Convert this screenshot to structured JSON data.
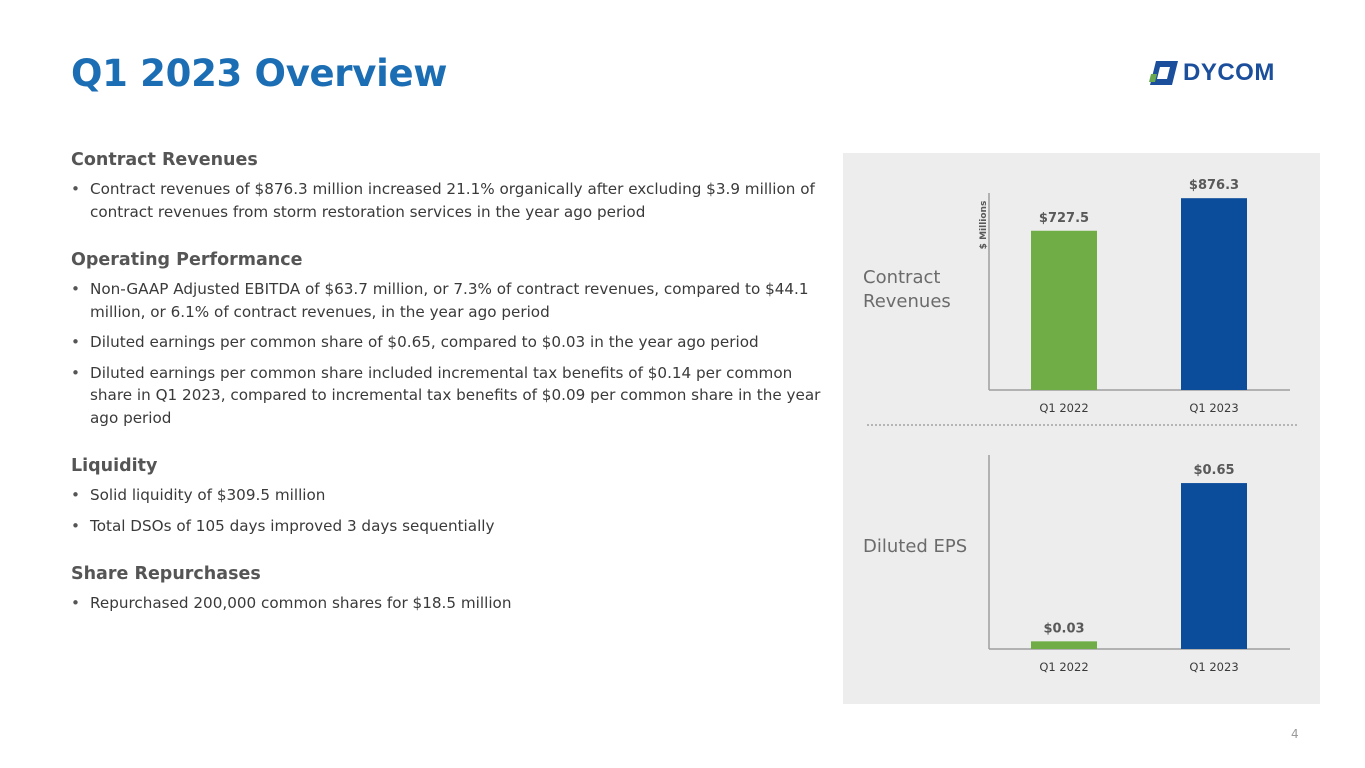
{
  "page": {
    "title": "Q1 2023 Overview",
    "page_number": "4"
  },
  "logo": {
    "text": "DYCOM",
    "colors": {
      "blue": "#1b4f9c",
      "green": "#6aa84f"
    }
  },
  "sections": [
    {
      "heading": "Contract Revenues",
      "bullets": [
        "Contract revenues of $876.3 million increased 21.1% organically after excluding $3.9 million of contract revenues from storm restoration services in the year ago period"
      ]
    },
    {
      "heading": "Operating Performance",
      "bullets": [
        "Non-GAAP Adjusted EBITDA of $63.7 million, or 7.3% of contract revenues, compared to $44.1 million, or 6.1% of contract revenues, in the year ago period",
        "Diluted earnings per common share of $0.65, compared to $0.03 in the year ago period",
        "Diluted earnings per common share included incremental tax benefits of $0.14 per common share in Q1 2023, compared to incremental tax benefits of $0.09 per common share in the year ago period"
      ]
    },
    {
      "heading": "Liquidity",
      "bullets": [
        "Solid liquidity of $309.5 million",
        "Total DSOs of 105 days improved 3 days sequentially"
      ]
    },
    {
      "heading": "Share Repurchases",
      "bullets": [
        "Repurchased 200,000 common shares for $18.5 million"
      ]
    }
  ],
  "panel_labels": {
    "revenues": "Contract\nRevenues",
    "eps": "Diluted EPS"
  },
  "colors": {
    "title": "#1b6eb4",
    "bar_prior": "#70ad47",
    "bar_current": "#0b4c9b",
    "panel_bg": "#ededed"
  },
  "chart_data": [
    {
      "type": "bar",
      "title": "",
      "categories": [
        "Q1 2022",
        "Q1 2023"
      ],
      "values": [
        727.5,
        876.3
      ],
      "data_labels": [
        "$727.5",
        "$876.3"
      ],
      "ylabel": "$ Millions",
      "ylim": [
        0,
        900
      ],
      "grid": false,
      "legend": "none",
      "bar_colors": [
        "#70ad47",
        "#0b4c9b"
      ]
    },
    {
      "type": "bar",
      "title": "",
      "categories": [
        "Q1 2022",
        "Q1 2023"
      ],
      "values": [
        0.03,
        0.65
      ],
      "data_labels": [
        "$0.03",
        "$0.65"
      ],
      "ylabel": "",
      "ylim": [
        0,
        0.76
      ],
      "grid": false,
      "legend": "none",
      "bar_colors": [
        "#70ad47",
        "#0b4c9b"
      ]
    }
  ]
}
